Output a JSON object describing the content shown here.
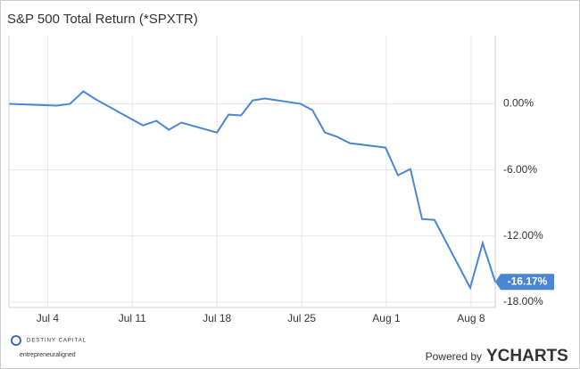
{
  "chart_data": {
    "type": "line",
    "title": "S&P 500 Total Return (*SPXTR)",
    "x": [
      0.83,
      4.74,
      5.84,
      6.95,
      7.98,
      10.93,
      11.88,
      12.99,
      14.02,
      15.05,
      18.0,
      18.96,
      19.99,
      20.95,
      21.98,
      24.93,
      25.89,
      26.92,
      27.95,
      28.98,
      31.93,
      32.96,
      33.99,
      34.95,
      35.98,
      38.93,
      39.96,
      41.0
    ],
    "series": [
      {
        "name": "S&P 500 Total Return",
        "color": "#4a86d4",
        "values": [
          0,
          -0.16,
          0,
          1.14,
          0.41,
          -1.38,
          -1.95,
          -1.54,
          -2.35,
          -1.7,
          -2.6,
          -0.97,
          -1.05,
          0.32,
          0.49,
          0,
          -0.57,
          -2.6,
          -3.0,
          -3.57,
          -3.97,
          -6.49,
          -5.92,
          -10.46,
          -10.54,
          -16.71,
          -12.65,
          -16.17
        ],
        "last_value_label": "-16.17%"
      }
    ],
    "xlim": [
      0.8,
      41.0
    ],
    "xticks": [
      {
        "value": 4,
        "label": "Jul 4"
      },
      {
        "value": 11,
        "label": "Jul 11"
      },
      {
        "value": 18,
        "label": "Jul 18"
      },
      {
        "value": 25,
        "label": "Jul 25"
      },
      {
        "value": 32,
        "label": "Aug 1"
      },
      {
        "value": 39,
        "label": "Aug 8"
      }
    ],
    "ylim": [
      -18.5,
      6.2
    ],
    "yticks": [
      {
        "value": 0,
        "label": "0.00%"
      },
      {
        "value": -6,
        "label": "-6.00%"
      },
      {
        "value": -12,
        "label": "-12.00%"
      },
      {
        "value": -18,
        "label": "-18.00%"
      }
    ],
    "grid": true
  },
  "footer": {
    "brand": "DESTINY CAPITAL",
    "tagline": "entrepreneuraligned",
    "powered": "Powered by",
    "provider": "YCHARTS"
  }
}
